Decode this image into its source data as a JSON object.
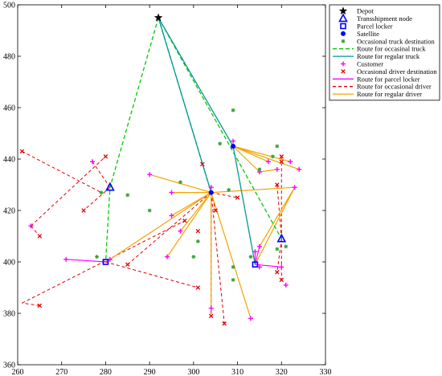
{
  "chart_data": {
    "type": "scatter",
    "title": "",
    "xlabel": "",
    "ylabel": "",
    "xlim": [
      260,
      330
    ],
    "ylim": [
      360,
      500
    ],
    "xticks": [
      260,
      270,
      280,
      290,
      300,
      310,
      320,
      330
    ],
    "yticks": [
      360,
      380,
      400,
      420,
      440,
      460,
      480,
      500
    ],
    "grid": false,
    "legend_position": "top-right",
    "colors": {
      "depot": "#000000",
      "transshipment": "#0000ff",
      "locker": "#0000ff",
      "satellite": "#0000ff",
      "occ_truck_dest": "#33a033",
      "occ_truck_route": "#00cc00",
      "regular_truck_route": "#009999",
      "customer": "#ff00ff",
      "occ_driver_dest": "#dd0000",
      "locker_route": "#ff00ff",
      "occ_driver_route": "#dd0000",
      "regular_driver_route": "#f4a300"
    },
    "legend": [
      {
        "key": "depot",
        "label": "Depot"
      },
      {
        "key": "transshipment",
        "label": "Transshipment node"
      },
      {
        "key": "locker",
        "label": "Parcel locker"
      },
      {
        "key": "satellite",
        "label": "Satellite"
      },
      {
        "key": "occ_truck_dest",
        "label": "Occasional truck destination"
      },
      {
        "key": "occ_truck_route",
        "label": "Route for occasinal truck"
      },
      {
        "key": "regular_truck_route",
        "label": "Route for regular truck"
      },
      {
        "key": "customer",
        "label": "Customer"
      },
      {
        "key": "occ_driver_dest",
        "label": "Occasional driver destination"
      },
      {
        "key": "locker_route",
        "label": "Route for parcel locker"
      },
      {
        "key": "occ_driver_route",
        "label": "Route for occasional driver"
      },
      {
        "key": "regular_driver_route",
        "label": "Route for regular driver"
      }
    ],
    "depot": [
      [
        292,
        495
      ]
    ],
    "transshipment_nodes": [
      [
        281,
        429
      ],
      [
        320,
        409
      ]
    ],
    "parcel_lockers": [
      [
        280,
        400
      ],
      [
        314,
        399
      ]
    ],
    "satellites": [
      [
        304,
        427
      ],
      [
        309,
        445
      ]
    ],
    "occasional_truck_destinations": [
      [
        279,
        427
      ],
      [
        285,
        426
      ],
      [
        297,
        431
      ],
      [
        301,
        408
      ],
      [
        300,
        402
      ],
      [
        308,
        428
      ],
      [
        304,
        427
      ],
      [
        309,
        459
      ],
      [
        309,
        398
      ],
      [
        309,
        393
      ],
      [
        313,
        402
      ],
      [
        315,
        436
      ],
      [
        319,
        445
      ],
      [
        319,
        405
      ],
      [
        318,
        441
      ],
      [
        321,
        406
      ],
      [
        278,
        402
      ],
      [
        290,
        420
      ],
      [
        306,
        446
      ]
    ],
    "customers": [
      [
        277,
        439
      ],
      [
        263,
        414
      ],
      [
        271,
        401
      ],
      [
        281,
        401
      ],
      [
        295,
        427
      ],
      [
        290,
        434
      ],
      [
        295,
        418
      ],
      [
        294,
        402
      ],
      [
        297,
        412
      ],
      [
        304,
        382
      ],
      [
        304,
        429
      ],
      [
        313,
        378
      ],
      [
        315,
        435
      ],
      [
        309,
        447
      ],
      [
        315,
        406
      ],
      [
        315,
        398
      ],
      [
        319,
        436
      ],
      [
        322,
        439
      ],
      [
        323,
        429
      ],
      [
        324,
        436
      ],
      [
        320,
        398
      ],
      [
        321,
        391
      ],
      [
        317,
        439
      ],
      [
        314,
        404
      ]
    ],
    "occasional_driver_destinations": [
      [
        261,
        443
      ],
      [
        265,
        410
      ],
      [
        275,
        420
      ],
      [
        280,
        441
      ],
      [
        265,
        383
      ],
      [
        285,
        399
      ],
      [
        298,
        416
      ],
      [
        301,
        390
      ],
      [
        304,
        379
      ],
      [
        305,
        420
      ],
      [
        307,
        376
      ],
      [
        301,
        412
      ],
      [
        302,
        438
      ],
      [
        310,
        425
      ],
      [
        319,
        430
      ],
      [
        320,
        441
      ],
      [
        320,
        439
      ],
      [
        320,
        393
      ],
      [
        319,
        396
      ]
    ],
    "routes_occasional_truck": [
      [
        [
          292,
          495
        ],
        [
          281,
          429
        ],
        [
          280,
          400
        ]
      ],
      [
        [
          292,
          495
        ],
        [
          304,
          427
        ]
      ],
      [
        [
          292,
          495
        ],
        [
          320,
          409
        ]
      ]
    ],
    "routes_regular_truck": [
      [
        [
          292,
          495
        ],
        [
          309,
          445
        ],
        [
          314,
          399
        ]
      ],
      [
        [
          292,
          495
        ],
        [
          304,
          427
        ]
      ]
    ],
    "routes_parcel_locker": [
      [
        [
          271,
          401
        ],
        [
          280,
          400
        ],
        [
          281,
          401
        ]
      ],
      [
        [
          314,
          399
        ],
        [
          320,
          398
        ]
      ],
      [
        [
          314,
          399
        ],
        [
          315,
          406
        ]
      ],
      [
        [
          314,
          399
        ],
        [
          314,
          404
        ]
      ]
    ],
    "routes_occasional_driver": [
      [
        [
          261,
          443
        ],
        [
          279,
          427
        ]
      ],
      [
        [
          263,
          414
        ],
        [
          265,
          410
        ]
      ],
      [
        [
          263,
          414
        ],
        [
          280,
          441
        ]
      ],
      [
        [
          277,
          439
        ],
        [
          281,
          429
        ]
      ],
      [
        [
          261,
          384
        ],
        [
          298,
          416
        ]
      ],
      [
        [
          265,
          383
        ],
        [
          261,
          384
        ]
      ],
      [
        [
          280,
          400
        ],
        [
          301,
          390
        ]
      ],
      [
        [
          285,
          399
        ],
        [
          304,
          427
        ]
      ],
      [
        [
          304,
          427
        ],
        [
          305,
          420
        ]
      ],
      [
        [
          304,
          427
        ],
        [
          304,
          379
        ]
      ],
      [
        [
          304,
          427
        ],
        [
          307,
          376
        ]
      ],
      [
        [
          304,
          427
        ],
        [
          310,
          425
        ]
      ],
      [
        [
          320,
          409
        ],
        [
          319,
          430
        ]
      ],
      [
        [
          320,
          409
        ],
        [
          320,
          441
        ]
      ],
      [
        [
          320,
          409
        ],
        [
          319,
          396
        ]
      ],
      [
        [
          320,
          409
        ],
        [
          320,
          393
        ]
      ],
      [
        [
          281,
          429
        ],
        [
          275,
          420
        ]
      ]
    ],
    "routes_regular_driver": [
      [
        [
          304,
          427
        ],
        [
          290,
          434
        ]
      ],
      [
        [
          304,
          427
        ],
        [
          295,
          427
        ]
      ],
      [
        [
          304,
          427
        ],
        [
          295,
          418
        ]
      ],
      [
        [
          304,
          427
        ],
        [
          294,
          402
        ]
      ],
      [
        [
          304,
          427
        ],
        [
          297,
          412
        ]
      ],
      [
        [
          304,
          427
        ],
        [
          304,
          382
        ]
      ],
      [
        [
          304,
          427
        ],
        [
          313,
          378
        ]
      ],
      [
        [
          304,
          427
        ],
        [
          323,
          429
        ]
      ],
      [
        [
          304,
          427
        ],
        [
          281,
          401
        ]
      ],
      [
        [
          309,
          445
        ],
        [
          322,
          439
        ]
      ],
      [
        [
          309,
          445
        ],
        [
          324,
          436
        ]
      ],
      [
        [
          309,
          445
        ],
        [
          317,
          439
        ]
      ],
      [
        [
          309,
          445
        ],
        [
          315,
          435
        ]
      ],
      [
        [
          315,
          435
        ],
        [
          319,
          436
        ]
      ],
      [
        [
          323,
          429
        ],
        [
          315,
          406
        ]
      ],
      [
        [
          323,
          429
        ],
        [
          314,
          399
        ]
      ]
    ]
  }
}
